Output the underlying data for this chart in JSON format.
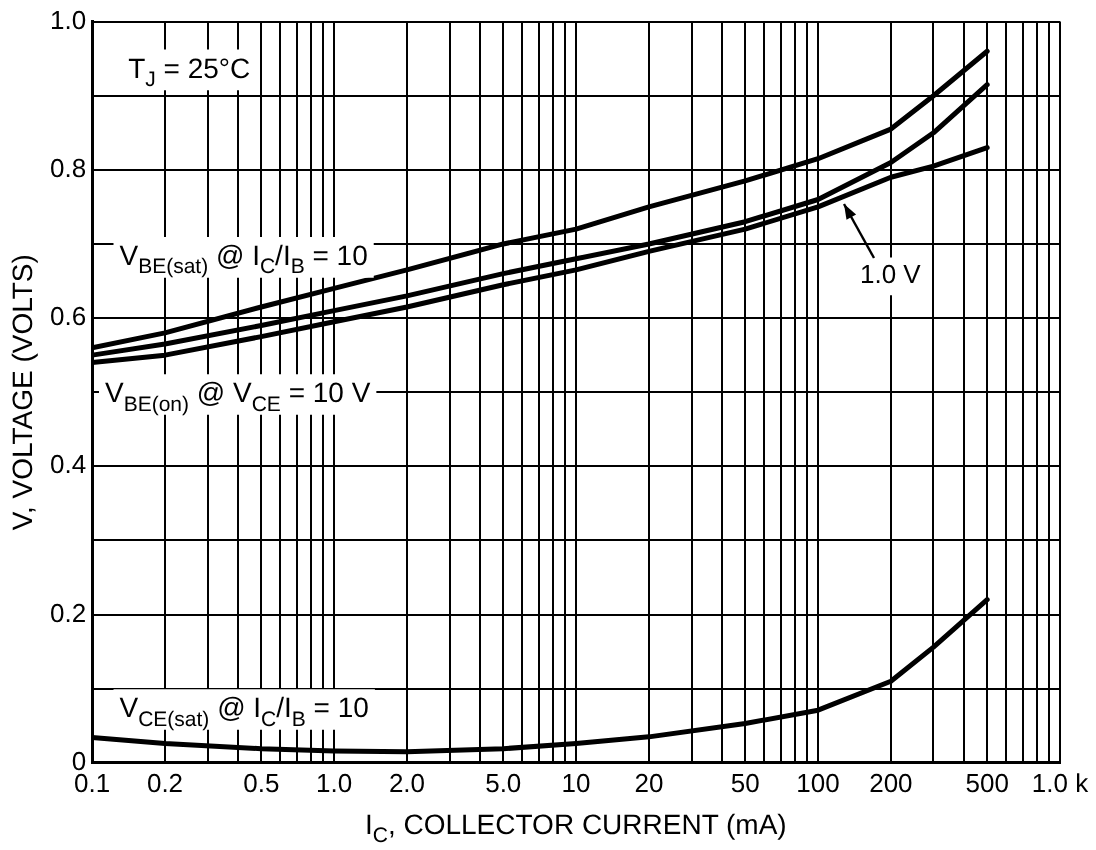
{
  "chart_data": {
    "type": "line",
    "xlabel": "I$_{C}$, COLLECTOR CURRENT (mA)",
    "ylabel": "V, VOLTAGE (VOLTS)",
    "annotations": [
      "T$_{J}$ = 25°C",
      {
        "text": "1.0 V",
        "x": 128,
        "y": 0.76
      }
    ],
    "log": "x",
    "x": [
      0.1,
      0.2,
      0.5,
      1,
      2,
      5,
      10,
      20,
      50,
      100,
      200,
      300,
      500
    ],
    "series": [
      {
        "name": "V$_{BE(sat)}$ @ I$_{C}$/I$_{B}$ = 10",
        "color": "#000000",
        "values": [
          0.56,
          0.58,
          0.615,
          0.64,
          0.665,
          0.7,
          0.72,
          0.75,
          0.785,
          0.815,
          0.855,
          0.9,
          0.96
        ]
      },
      {
        "name": "V$_{BE(on)}$ @ V$_{CE}$ = 10 V",
        "color": "#000000",
        "values": [
          0.55,
          0.565,
          0.59,
          0.61,
          0.63,
          0.66,
          0.68,
          0.7,
          0.73,
          0.76,
          0.81,
          0.85,
          0.915
        ]
      },
      {
        "color": "#000000",
        "values": [
          0.54,
          0.55,
          0.575,
          0.595,
          0.615,
          0.645,
          0.665,
          0.69,
          0.72,
          0.75,
          0.79,
          0.805,
          0.83
        ]
      },
      {
        "name": "V$_{CE(sat)}$ @ I$_{C}$/I$_{B}$ = 10",
        "color": "#000000",
        "values": [
          0.034,
          0.026,
          0.019,
          0.016,
          0.015,
          0.019,
          0.026,
          0.035,
          0.053,
          0.071,
          0.11,
          0.156,
          0.22
        ]
      }
    ],
    "xlim": [
      0.1,
      1000
    ],
    "xticks": [
      {
        "value": 0.1,
        "label": "0.1"
      },
      0.2,
      {
        "value": 0.3,
        "label": null
      },
      {
        "value": 0.4,
        "label": null
      },
      0.5,
      {
        "value": 0.6,
        "label": null
      },
      {
        "value": 0.7,
        "label": null
      },
      {
        "value": 0.8,
        "label": null
      },
      {
        "value": 0.9,
        "label": null
      },
      {
        "value": 1,
        "label": "1.0"
      },
      {
        "value": 2,
        "label": "2.0"
      },
      {
        "value": 3,
        "label": null
      },
      {
        "value": 4,
        "label": null
      },
      {
        "value": 5,
        "label": "5.0"
      },
      {
        "value": 6,
        "label": null
      },
      {
        "value": 7,
        "label": null
      },
      {
        "value": 8,
        "label": null
      },
      {
        "value": 9,
        "label": null
      },
      10,
      20,
      {
        "value": 30,
        "label": null
      },
      {
        "value": 40,
        "label": null
      },
      50,
      {
        "value": 60,
        "label": null
      },
      {
        "value": 70,
        "label": null
      },
      {
        "value": 80,
        "label": null
      },
      {
        "value": 90,
        "label": null
      },
      100,
      200,
      {
        "value": 300,
        "label": null
      },
      {
        "value": 400,
        "label": null
      },
      500,
      {
        "value": 600,
        "label": null
      },
      {
        "value": 700,
        "label": null
      },
      {
        "value": 800,
        "label": null
      },
      {
        "value": 900,
        "label": null
      },
      {
        "value": 1000,
        "label": "1.0 k"
      }
    ],
    "ylim": [
      0,
      1
    ],
    "yticks": [
      0,
      {
        "value": 0.1,
        "label": null
      },
      0.2,
      {
        "value": 0.3,
        "label": null
      },
      0.4,
      {
        "value": 0.5,
        "label": null
      },
      0.6,
      {
        "value": 0.7,
        "label": null
      },
      0.8,
      {
        "value": 0.9,
        "label": null
      },
      {
        "value": 1,
        "label": "1.0"
      }
    ],
    "grid": true,
    "legend": false,
    "marker": "none",
    "line_style": "solid"
  }
}
